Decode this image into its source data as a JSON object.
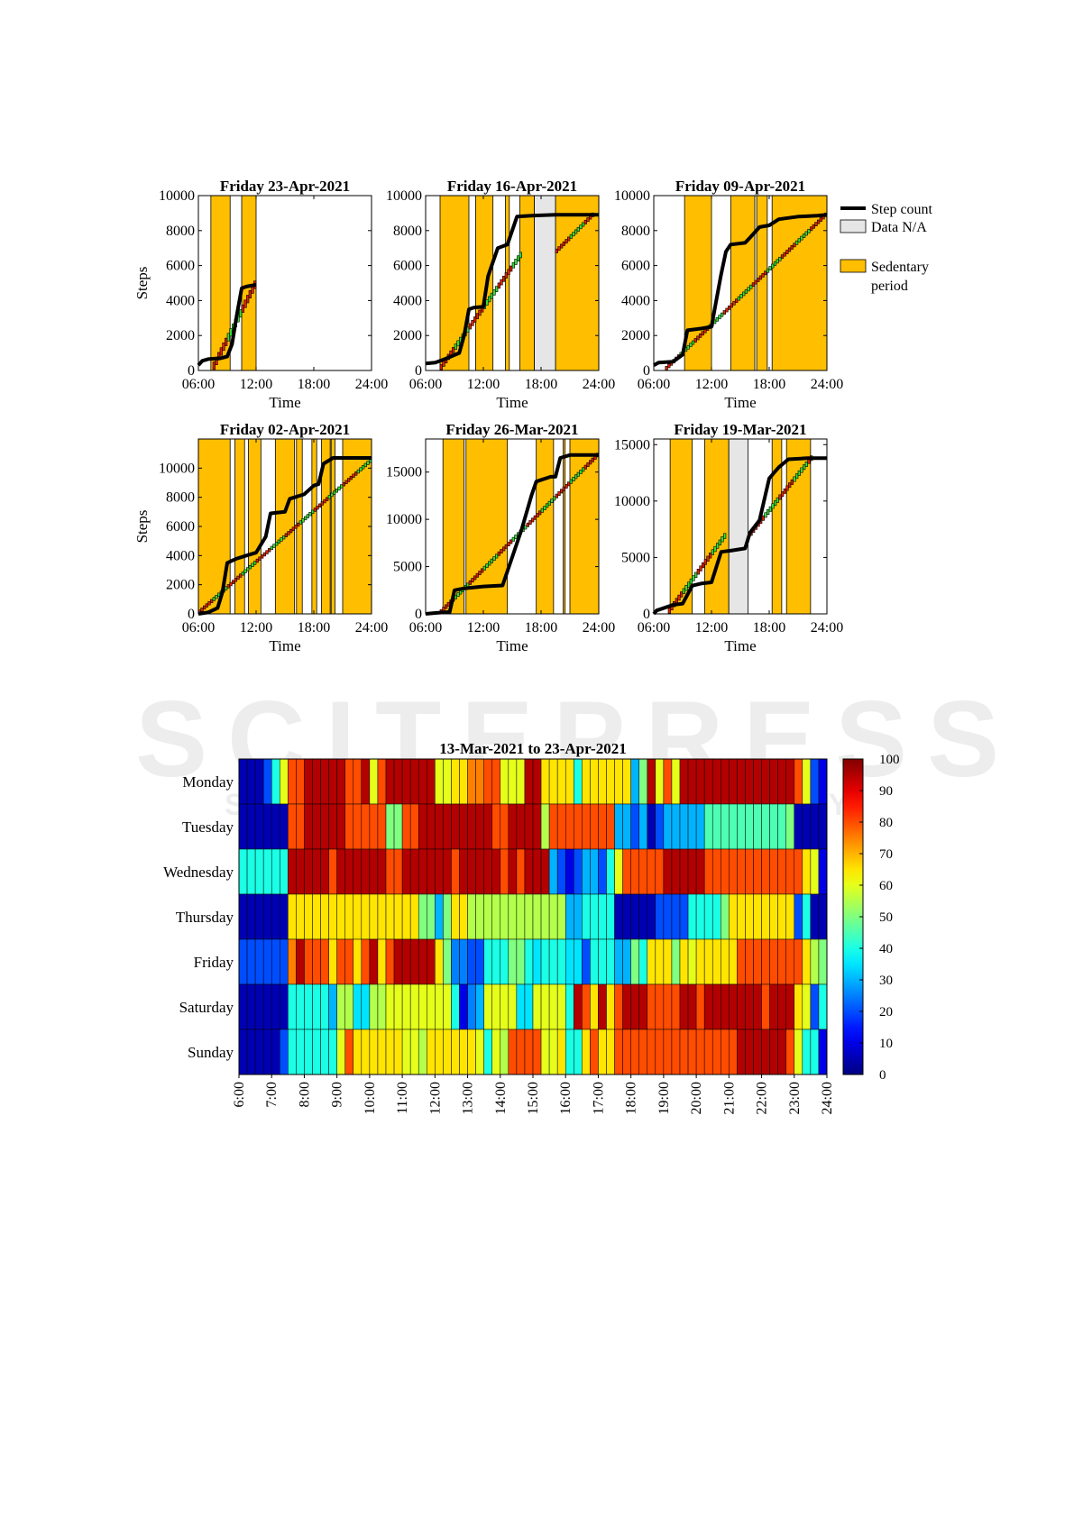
{
  "watermark": {
    "main": "SCITEPRESS",
    "sub": "SCIENCE AND TECHNOLOGY PUBLICATIONS"
  },
  "chart_data": [
    {
      "type": "line",
      "title": "Friday 23-Apr-2021",
      "ylabel": "Steps",
      "xlabel": "Time",
      "xlim": [
        6,
        24
      ],
      "ylim": [
        0,
        10000
      ],
      "xticks": [
        "06:00",
        "12:00",
        "18:00",
        "24:00"
      ],
      "yticks": [
        0,
        2000,
        4000,
        6000,
        8000,
        10000
      ],
      "sedentary": [
        [
          7.3,
          9.3
        ],
        [
          10.5,
          12.0
        ]
      ],
      "na": [],
      "step_count": [
        [
          6,
          300
        ],
        [
          6.4,
          550
        ],
        [
          7,
          650
        ],
        [
          8.3,
          700
        ],
        [
          9,
          800
        ],
        [
          9.5,
          1500
        ],
        [
          10,
          3200
        ],
        [
          10.5,
          4700
        ],
        [
          11,
          4800
        ],
        [
          12,
          4900
        ]
      ],
      "goal_segments": [
        [
          7.5,
          12.0,
          0,
          4900
        ]
      ]
    },
    {
      "type": "line",
      "title": "Friday 16-Apr-2021",
      "ylabel": "",
      "xlabel": "Time",
      "xlim": [
        6,
        24
      ],
      "ylim": [
        0,
        10000
      ],
      "xticks": [
        "06:00",
        "12:00",
        "18:00",
        "24:00"
      ],
      "yticks": [
        0,
        2000,
        4000,
        6000,
        8000,
        10000
      ],
      "sedentary": [
        [
          7.5,
          10.5
        ],
        [
          11.2,
          13.0
        ],
        [
          14.3,
          14.7
        ],
        [
          15.8,
          17.3
        ],
        [
          19.5,
          24.0
        ]
      ],
      "na": [
        [
          17.3,
          19.5
        ]
      ],
      "step_count": [
        [
          6,
          400
        ],
        [
          7,
          450
        ],
        [
          8,
          650
        ],
        [
          9.5,
          1000
        ],
        [
          10,
          2000
        ],
        [
          10.5,
          3500
        ],
        [
          11,
          3600
        ],
        [
          12,
          3650
        ],
        [
          12.5,
          5400
        ],
        [
          13.5,
          7000
        ],
        [
          14.5,
          7200
        ],
        [
          15.5,
          8800
        ],
        [
          17,
          8850
        ],
        [
          19.5,
          8900
        ],
        [
          24,
          8900
        ]
      ],
      "goal_segments": [
        [
          7.5,
          16.0,
          0,
          6600
        ],
        [
          19.5,
          23.5,
          6700,
          8900
        ]
      ]
    },
    {
      "type": "line",
      "title": "Friday 09-Apr-2021",
      "ylabel": "",
      "xlabel": "Time",
      "xlim": [
        6,
        24
      ],
      "ylim": [
        0,
        10000
      ],
      "xticks": [
        "06:00",
        "12:00",
        "18:00",
        "24:00"
      ],
      "yticks": [
        0,
        2000,
        4000,
        6000,
        8000,
        10000
      ],
      "sedentary": [
        [
          9.2,
          12.0
        ],
        [
          14.0,
          16.5
        ],
        [
          16.7,
          17.8
        ],
        [
          18.3,
          24.0
        ]
      ],
      "na": [],
      "step_count": [
        [
          6,
          300
        ],
        [
          6.5,
          450
        ],
        [
          8,
          500
        ],
        [
          9,
          900
        ],
        [
          9.5,
          2300
        ],
        [
          11,
          2400
        ],
        [
          12,
          2500
        ],
        [
          12.5,
          4000
        ],
        [
          13,
          5500
        ],
        [
          13.5,
          6800
        ],
        [
          14,
          7200
        ],
        [
          15.5,
          7300
        ],
        [
          16,
          7600
        ],
        [
          17,
          8200
        ],
        [
          18,
          8300
        ],
        [
          19,
          8650
        ],
        [
          21,
          8800
        ],
        [
          23,
          8850
        ],
        [
          24,
          8900
        ]
      ],
      "goal_segments": [
        [
          7.2,
          24.0,
          0,
          8900
        ]
      ]
    },
    {
      "type": "line",
      "title": "Friday 02-Apr-2021",
      "ylabel": "Steps",
      "xlabel": "Time",
      "xlim": [
        6,
        24
      ],
      "ylim": [
        0,
        12000
      ],
      "xticks": [
        "06:00",
        "12:00",
        "18:00",
        "24:00"
      ],
      "yticks": [
        0,
        2000,
        4000,
        6000,
        8000,
        10000
      ],
      "sedentary": [
        [
          6.0,
          9.3
        ],
        [
          9.8,
          10.8
        ],
        [
          11.2,
          12.5
        ],
        [
          14.0,
          16.0
        ],
        [
          16.2,
          16.8
        ],
        [
          17.8,
          18.3
        ],
        [
          18.8,
          19.7
        ],
        [
          19.8,
          20.2
        ],
        [
          21.0,
          24.0
        ]
      ],
      "na": [],
      "step_count": [
        [
          6,
          0
        ],
        [
          7,
          100
        ],
        [
          8,
          400
        ],
        [
          8.5,
          1500
        ],
        [
          9,
          3500
        ],
        [
          10,
          3800
        ],
        [
          11,
          4000
        ],
        [
          12,
          4200
        ],
        [
          13,
          5300
        ],
        [
          13.5,
          6900
        ],
        [
          15,
          7000
        ],
        [
          15.5,
          7900
        ],
        [
          16,
          8000
        ],
        [
          17,
          8200
        ],
        [
          18,
          8800
        ],
        [
          18.5,
          8900
        ],
        [
          19,
          10300
        ],
        [
          20,
          10700
        ],
        [
          24,
          10700
        ]
      ],
      "goal_segments": [
        [
          6.0,
          24.0,
          0,
          10500
        ]
      ]
    },
    {
      "type": "line",
      "title": "Friday 26-Mar-2021",
      "ylabel": "",
      "xlabel": "Time",
      "xlim": [
        6,
        24
      ],
      "ylim": [
        0,
        18500
      ],
      "xticks": [
        "06:00",
        "12:00",
        "18:00",
        "24:00"
      ],
      "yticks": [
        0,
        5000,
        10000,
        15000
      ],
      "sedentary": [
        [
          7.8,
          10.0
        ],
        [
          10.2,
          14.5
        ],
        [
          17.5,
          19.3
        ],
        [
          20.3,
          20.5
        ],
        [
          21.0,
          24.0
        ]
      ],
      "na": [],
      "step_count": [
        [
          6,
          0
        ],
        [
          7,
          100
        ],
        [
          8.5,
          200
        ],
        [
          9,
          2500
        ],
        [
          10,
          2700
        ],
        [
          12,
          2900
        ],
        [
          14,
          3000
        ],
        [
          15,
          6000
        ],
        [
          16,
          9000
        ],
        [
          17,
          12500
        ],
        [
          17.5,
          14000
        ],
        [
          19,
          14500
        ],
        [
          19.5,
          14500
        ],
        [
          20,
          16500
        ],
        [
          21,
          16800
        ],
        [
          24,
          16800
        ]
      ],
      "goal_segments": [
        [
          7.5,
          24.0,
          0,
          16800
        ]
      ]
    },
    {
      "type": "line",
      "title": "Friday 19-Mar-2021",
      "ylabel": "",
      "xlabel": "Time",
      "xlim": [
        6,
        24
      ],
      "ylim": [
        0,
        15500
      ],
      "xticks": [
        "06:00",
        "12:00",
        "18:00",
        "24:00"
      ],
      "yticks": [
        0,
        5000,
        10000,
        15000
      ],
      "sedentary": [
        [
          7.7,
          10.0
        ],
        [
          11.3,
          13.8
        ],
        [
          18.3,
          19.3
        ],
        [
          19.8,
          22.3
        ]
      ],
      "na": [
        [
          13.8,
          15.8
        ]
      ],
      "step_count": [
        [
          6,
          0
        ],
        [
          6.3,
          300
        ],
        [
          7,
          500
        ],
        [
          8,
          800
        ],
        [
          9,
          900
        ],
        [
          10,
          2500
        ],
        [
          11,
          2700
        ],
        [
          12,
          2800
        ],
        [
          13,
          5500
        ],
        [
          14,
          5600
        ],
        [
          15.5,
          5800
        ],
        [
          16,
          7200
        ],
        [
          17,
          8300
        ],
        [
          18,
          12000
        ],
        [
          18.5,
          12500
        ],
        [
          19,
          13000
        ],
        [
          20,
          13700
        ],
        [
          22,
          13800
        ],
        [
          24,
          13800
        ]
      ],
      "goal_segments": [
        [
          7.5,
          13.5,
          0,
          6900
        ],
        [
          16.0,
          22.5,
          6900,
          13800
        ]
      ]
    },
    {
      "type": "heatmap",
      "title": "13-Mar-2021     to     23-Apr-2021",
      "rows": [
        "Monday",
        "Tuesday",
        "Wednesday",
        "Thursday",
        "Friday",
        "Saturday",
        "Sunday"
      ],
      "xticks": [
        "6:00",
        "7:00",
        "8:00",
        "9:00",
        "10:00",
        "11:00",
        "12:00",
        "13:00",
        "14:00",
        "15:00",
        "16:00",
        "17:00",
        "18:00",
        "19:00",
        "20:00",
        "21:00",
        "22:00",
        "23:00",
        "24:00"
      ],
      "bins_per_hour": 4,
      "xlim": [
        6,
        24
      ],
      "colorbar": {
        "min": 0,
        "max": 100,
        "ticks": [
          0,
          10,
          20,
          30,
          40,
          50,
          60,
          70,
          80,
          90,
          100
        ]
      },
      "values": [
        [
          5,
          5,
          5,
          20,
          40,
          60,
          80,
          80,
          95,
          95,
          95,
          95,
          95,
          80,
          80,
          95,
          60,
          80,
          95,
          95,
          95,
          95,
          95,
          95,
          60,
          60,
          65,
          65,
          75,
          75,
          80,
          80,
          60,
          60,
          60,
          95,
          95,
          65,
          65,
          65,
          65,
          40,
          65,
          65,
          65,
          65,
          65,
          65,
          30,
          50,
          95,
          60,
          80,
          60,
          95,
          95,
          95,
          95,
          95,
          95,
          95,
          95,
          95,
          95,
          95,
          95,
          95,
          95,
          80,
          60,
          20,
          10
        ],
        [
          5,
          5,
          5,
          5,
          5,
          5,
          80,
          80,
          95,
          95,
          95,
          95,
          95,
          80,
          80,
          80,
          80,
          80,
          50,
          50,
          80,
          80,
          95,
          95,
          95,
          95,
          95,
          95,
          95,
          95,
          95,
          80,
          80,
          95,
          95,
          95,
          95,
          55,
          80,
          80,
          80,
          80,
          80,
          80,
          80,
          80,
          30,
          30,
          20,
          30,
          5,
          20,
          30,
          30,
          30,
          30,
          30,
          45,
          45,
          45,
          45,
          45,
          45,
          45,
          45,
          45,
          45,
          50,
          5,
          5,
          5,
          5
        ],
        [
          40,
          40,
          40,
          40,
          40,
          40,
          95,
          95,
          95,
          95,
          95,
          80,
          95,
          95,
          95,
          95,
          95,
          95,
          80,
          80,
          95,
          95,
          95,
          95,
          95,
          95,
          80,
          95,
          95,
          95,
          95,
          95,
          80,
          95,
          80,
          95,
          95,
          95,
          30,
          20,
          10,
          20,
          30,
          30,
          20,
          40,
          60,
          80,
          80,
          80,
          80,
          80,
          95,
          95,
          95,
          95,
          95,
          80,
          80,
          80,
          80,
          80,
          80,
          80,
          80,
          80,
          80,
          80,
          80,
          65,
          60,
          10
        ],
        [
          5,
          5,
          5,
          5,
          5,
          5,
          65,
          65,
          65,
          65,
          65,
          65,
          65,
          65,
          65,
          65,
          65,
          65,
          65,
          65,
          65,
          65,
          50,
          50,
          30,
          50,
          65,
          65,
          55,
          55,
          55,
          55,
          55,
          55,
          55,
          55,
          55,
          55,
          55,
          55,
          30,
          30,
          40,
          40,
          40,
          40,
          5,
          5,
          5,
          5,
          5,
          20,
          20,
          20,
          20,
          40,
          40,
          40,
          40,
          50,
          65,
          65,
          65,
          65,
          65,
          65,
          65,
          65,
          20,
          40,
          5,
          5
        ],
        [
          20,
          20,
          20,
          20,
          20,
          20,
          75,
          95,
          80,
          80,
          80,
          65,
          80,
          80,
          65,
          80,
          95,
          65,
          80,
          95,
          95,
          95,
          95,
          95,
          65,
          50,
          25,
          25,
          20,
          20,
          40,
          40,
          40,
          50,
          50,
          40,
          35,
          40,
          40,
          40,
          35,
          35,
          20,
          40,
          40,
          40,
          30,
          30,
          50,
          40,
          65,
          65,
          65,
          50,
          65,
          60,
          65,
          65,
          65,
          65,
          65,
          80,
          80,
          80,
          80,
          80,
          80,
          80,
          80,
          65,
          55,
          50
        ],
        [
          5,
          5,
          5,
          5,
          5,
          5,
          40,
          40,
          40,
          40,
          40,
          30,
          55,
          55,
          35,
          35,
          55,
          55,
          60,
          60,
          60,
          60,
          60,
          60,
          60,
          60,
          40,
          10,
          25,
          30,
          60,
          60,
          60,
          60,
          35,
          35,
          60,
          60,
          60,
          60,
          40,
          95,
          80,
          65,
          95,
          65,
          80,
          95,
          95,
          95,
          80,
          80,
          80,
          80,
          95,
          95,
          80,
          95,
          95,
          95,
          95,
          95,
          95,
          95,
          80,
          95,
          95,
          95,
          65,
          60,
          20,
          40
        ],
        [
          5,
          5,
          5,
          5,
          5,
          20,
          40,
          40,
          40,
          40,
          40,
          40,
          60,
          80,
          65,
          65,
          65,
          65,
          65,
          65,
          60,
          60,
          55,
          65,
          65,
          65,
          65,
          65,
          65,
          60,
          40,
          60,
          55,
          80,
          80,
          80,
          80,
          60,
          60,
          65,
          40,
          40,
          65,
          80,
          65,
          65,
          80,
          80,
          80,
          80,
          80,
          80,
          80,
          80,
          80,
          80,
          80,
          80,
          80,
          80,
          80,
          95,
          95,
          95,
          95,
          95,
          95,
          80,
          60,
          40,
          40,
          10
        ]
      ]
    }
  ],
  "legend": [
    {
      "label": "Step count",
      "kind": "line",
      "color": "#000000"
    },
    {
      "label": "Data N/A",
      "kind": "patch",
      "color": "#e6e6e6"
    },
    {
      "label": "Sedentary",
      "label2": "period",
      "kind": "patch",
      "color": "#ffbf00"
    }
  ],
  "colors": {
    "sedentary": "#ffbf00",
    "na": "#e6e6e6",
    "step_line": "#000000",
    "goal_on": "#33dd33",
    "goal_off": "#dd2200"
  }
}
